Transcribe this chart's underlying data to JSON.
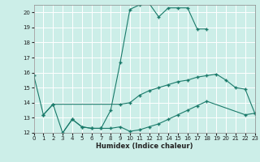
{
  "xlabel": "Humidex (Indice chaleur)",
  "bg_color": "#cceee8",
  "line_color": "#1a7a6a",
  "grid_color": "#ffffff",
  "xlim": [
    0,
    23
  ],
  "ylim": [
    12,
    20.5
  ],
  "yticks": [
    12,
    13,
    14,
    15,
    16,
    17,
    18,
    19,
    20
  ],
  "xticks": [
    0,
    1,
    2,
    3,
    4,
    5,
    6,
    7,
    8,
    9,
    10,
    11,
    12,
    13,
    14,
    15,
    16,
    17,
    18,
    19,
    20,
    21,
    22,
    23
  ],
  "curve1_x": [
    0,
    1,
    2,
    3,
    4,
    5,
    6,
    7,
    8,
    9,
    10,
    11,
    12,
    13,
    14,
    15,
    16,
    17,
    18
  ],
  "curve1_y": [
    15.8,
    13.2,
    13.9,
    12.0,
    12.9,
    12.4,
    12.3,
    12.3,
    13.5,
    16.7,
    20.2,
    20.5,
    20.6,
    19.7,
    20.3,
    20.3,
    20.3,
    18.9,
    18.9
  ],
  "curve2_x": [
    1,
    2,
    9,
    10,
    11,
    12,
    13,
    14,
    15,
    16,
    17,
    18,
    19,
    20,
    21,
    22,
    23
  ],
  "curve2_y": [
    13.2,
    13.9,
    13.9,
    14.0,
    14.5,
    14.8,
    15.0,
    15.2,
    15.4,
    15.5,
    15.7,
    15.8,
    15.9,
    15.5,
    15.0,
    14.9,
    13.3
  ],
  "curve3_x": [
    3,
    4,
    5,
    6,
    7,
    8,
    9,
    10,
    11,
    12,
    13,
    14,
    15,
    16,
    17,
    18,
    22,
    23
  ],
  "curve3_y": [
    12.0,
    12.9,
    12.4,
    12.3,
    12.3,
    12.3,
    12.4,
    12.1,
    12.2,
    12.4,
    12.6,
    12.9,
    13.2,
    13.5,
    13.8,
    14.1,
    13.2,
    13.3
  ]
}
